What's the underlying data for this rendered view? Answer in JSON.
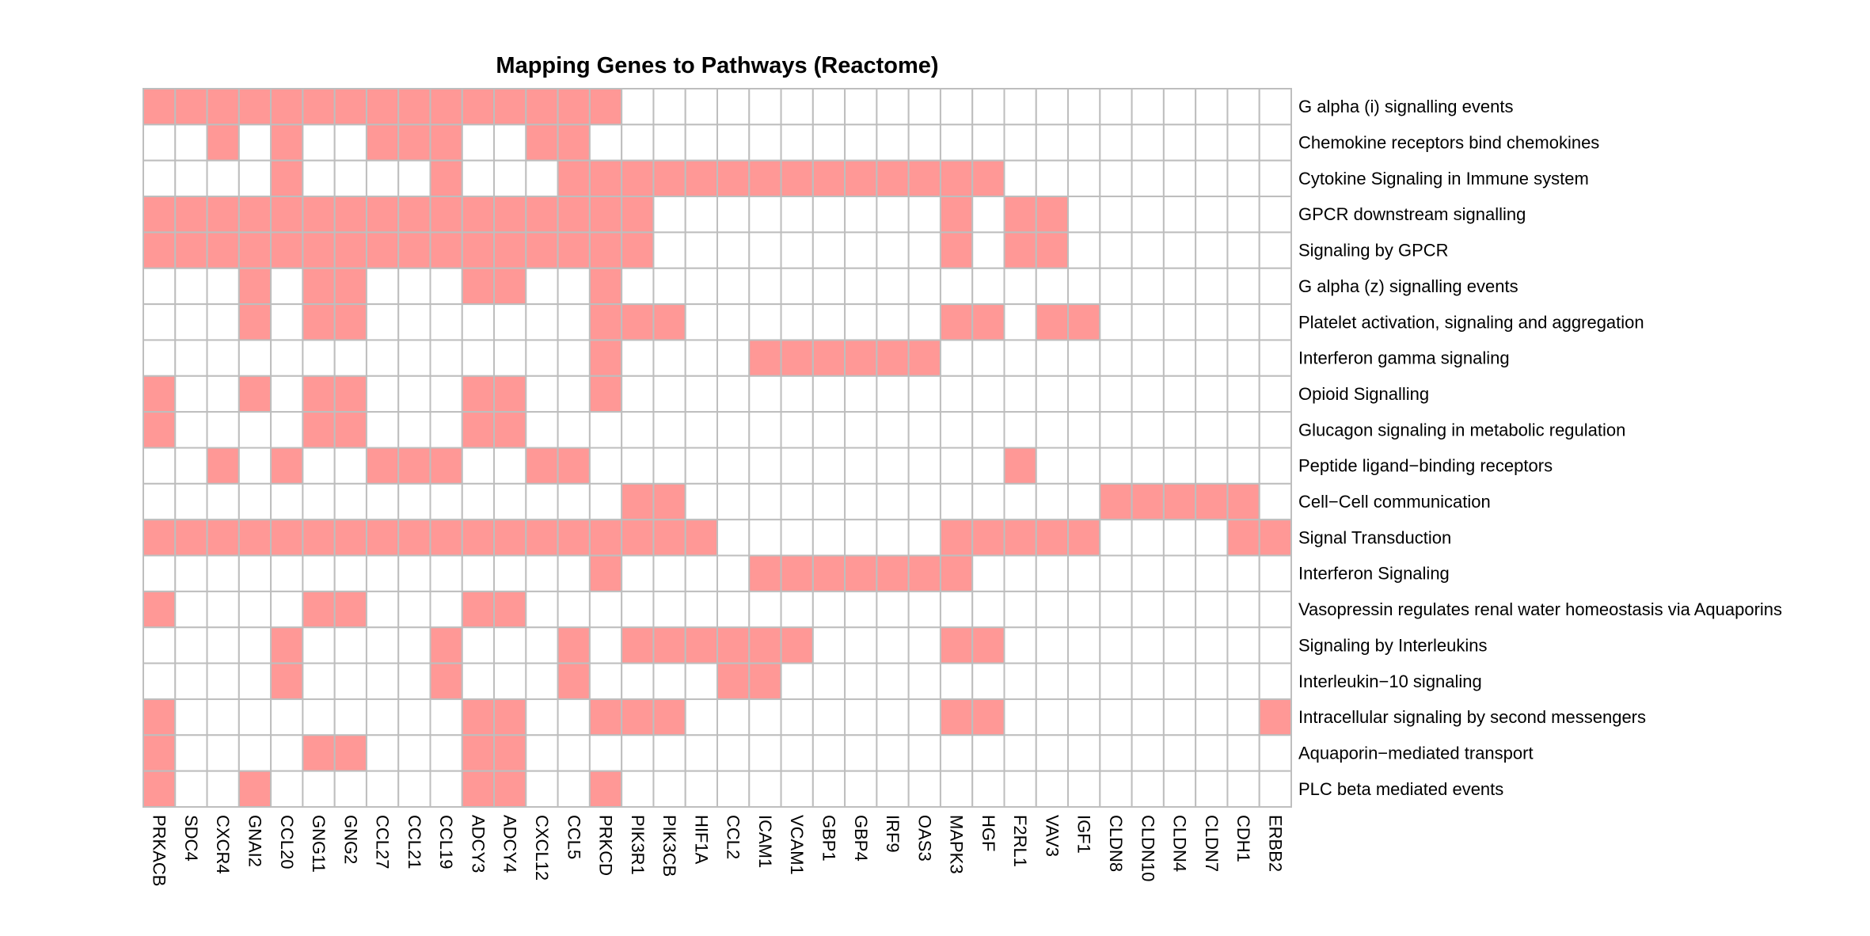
{
  "chart_data": {
    "type": "heatmap",
    "title": "Mapping Genes to Pathways (Reactome)",
    "columns": [
      "PRKACB",
      "SDC4",
      "CXCR4",
      "GNAI2",
      "CCL20",
      "GNG11",
      "GNG2",
      "CCL27",
      "CCL21",
      "CCL19",
      "ADCY3",
      "ADCY4",
      "CXCL12",
      "CCL5",
      "PRKCD",
      "PIK3R1",
      "PIK3CB",
      "HIF1A",
      "CCL2",
      "ICAM1",
      "VCAM1",
      "GBP1",
      "GBP4",
      "IRF9",
      "OAS3",
      "MAPK3",
      "HGF",
      "F2RL1",
      "VAV3",
      "IGF1",
      "CLDN8",
      "CLDN10",
      "CLDN4",
      "CLDN7",
      "CDH1",
      "ERBB2"
    ],
    "rows": [
      "G alpha (i) signalling events",
      "Chemokine receptors bind chemokines",
      "Cytokine Signaling in Immune system",
      "GPCR downstream signalling",
      "Signaling by GPCR",
      "G alpha (z) signalling events",
      "Platelet activation, signaling and aggregation",
      "Interferon gamma signaling",
      "Opioid Signalling",
      "Glucagon signaling in metabolic regulation",
      "Peptide ligand−binding receptors",
      "Cell−Cell communication",
      "Signal Transduction",
      "Interferon Signaling",
      "Vasopressin regulates renal water homeostasis via Aquaporins",
      "Signaling by Interleukins",
      "Interleukin−10 signaling",
      "Intracellular signaling by second messengers",
      "Aquaporin−mediated transport",
      "PLC beta mediated events"
    ],
    "matrix": [
      [
        1,
        1,
        1,
        1,
        1,
        1,
        1,
        1,
        1,
        1,
        1,
        1,
        1,
        1,
        1,
        0,
        0,
        0,
        0,
        0,
        0,
        0,
        0,
        0,
        0,
        0,
        0,
        0,
        0,
        0,
        0,
        0,
        0,
        0,
        0,
        0
      ],
      [
        0,
        0,
        1,
        0,
        1,
        0,
        0,
        1,
        1,
        1,
        0,
        0,
        1,
        1,
        0,
        0,
        0,
        0,
        0,
        0,
        0,
        0,
        0,
        0,
        0,
        0,
        0,
        0,
        0,
        0,
        0,
        0,
        0,
        0,
        0,
        0
      ],
      [
        0,
        0,
        0,
        0,
        1,
        0,
        0,
        0,
        0,
        1,
        0,
        0,
        0,
        1,
        1,
        1,
        1,
        1,
        1,
        1,
        1,
        1,
        1,
        1,
        1,
        1,
        1,
        0,
        0,
        0,
        0,
        0,
        0,
        0,
        0,
        0
      ],
      [
        1,
        1,
        1,
        1,
        1,
        1,
        1,
        1,
        1,
        1,
        1,
        1,
        1,
        1,
        1,
        1,
        0,
        0,
        0,
        0,
        0,
        0,
        0,
        0,
        0,
        1,
        0,
        1,
        1,
        0,
        0,
        0,
        0,
        0,
        0,
        0
      ],
      [
        1,
        1,
        1,
        1,
        1,
        1,
        1,
        1,
        1,
        1,
        1,
        1,
        1,
        1,
        1,
        1,
        0,
        0,
        0,
        0,
        0,
        0,
        0,
        0,
        0,
        1,
        0,
        1,
        1,
        0,
        0,
        0,
        0,
        0,
        0,
        0
      ],
      [
        0,
        0,
        0,
        1,
        0,
        1,
        1,
        0,
        0,
        0,
        1,
        1,
        0,
        0,
        1,
        0,
        0,
        0,
        0,
        0,
        0,
        0,
        0,
        0,
        0,
        0,
        0,
        0,
        0,
        0,
        0,
        0,
        0,
        0,
        0,
        0
      ],
      [
        0,
        0,
        0,
        1,
        0,
        1,
        1,
        0,
        0,
        0,
        0,
        0,
        0,
        0,
        1,
        1,
        1,
        0,
        0,
        0,
        0,
        0,
        0,
        0,
        0,
        1,
        1,
        0,
        1,
        1,
        0,
        0,
        0,
        0,
        0,
        0
      ],
      [
        0,
        0,
        0,
        0,
        0,
        0,
        0,
        0,
        0,
        0,
        0,
        0,
        0,
        0,
        1,
        0,
        0,
        0,
        0,
        1,
        1,
        1,
        1,
        1,
        1,
        0,
        0,
        0,
        0,
        0,
        0,
        0,
        0,
        0,
        0,
        0
      ],
      [
        1,
        0,
        0,
        1,
        0,
        1,
        1,
        0,
        0,
        0,
        1,
        1,
        0,
        0,
        1,
        0,
        0,
        0,
        0,
        0,
        0,
        0,
        0,
        0,
        0,
        0,
        0,
        0,
        0,
        0,
        0,
        0,
        0,
        0,
        0,
        0
      ],
      [
        1,
        0,
        0,
        0,
        0,
        1,
        1,
        0,
        0,
        0,
        1,
        1,
        0,
        0,
        0,
        0,
        0,
        0,
        0,
        0,
        0,
        0,
        0,
        0,
        0,
        0,
        0,
        0,
        0,
        0,
        0,
        0,
        0,
        0,
        0,
        0
      ],
      [
        0,
        0,
        1,
        0,
        1,
        0,
        0,
        1,
        1,
        1,
        0,
        0,
        1,
        1,
        0,
        0,
        0,
        0,
        0,
        0,
        0,
        0,
        0,
        0,
        0,
        0,
        0,
        1,
        0,
        0,
        0,
        0,
        0,
        0,
        0,
        0
      ],
      [
        0,
        0,
        0,
        0,
        0,
        0,
        0,
        0,
        0,
        0,
        0,
        0,
        0,
        0,
        0,
        1,
        1,
        0,
        0,
        0,
        0,
        0,
        0,
        0,
        0,
        0,
        0,
        0,
        0,
        0,
        1,
        1,
        1,
        1,
        1,
        0
      ],
      [
        1,
        1,
        1,
        1,
        1,
        1,
        1,
        1,
        1,
        1,
        1,
        1,
        1,
        1,
        1,
        1,
        1,
        1,
        0,
        0,
        0,
        0,
        0,
        0,
        0,
        1,
        1,
        1,
        1,
        1,
        0,
        0,
        0,
        0,
        1,
        1
      ],
      [
        0,
        0,
        0,
        0,
        0,
        0,
        0,
        0,
        0,
        0,
        0,
        0,
        0,
        0,
        1,
        0,
        0,
        0,
        0,
        1,
        1,
        1,
        1,
        1,
        1,
        1,
        0,
        0,
        0,
        0,
        0,
        0,
        0,
        0,
        0,
        0
      ],
      [
        1,
        0,
        0,
        0,
        0,
        1,
        1,
        0,
        0,
        0,
        1,
        1,
        0,
        0,
        0,
        0,
        0,
        0,
        0,
        0,
        0,
        0,
        0,
        0,
        0,
        0,
        0,
        0,
        0,
        0,
        0,
        0,
        0,
        0,
        0,
        0
      ],
      [
        0,
        0,
        0,
        0,
        1,
        0,
        0,
        0,
        0,
        1,
        0,
        0,
        0,
        1,
        0,
        1,
        1,
        1,
        1,
        1,
        1,
        0,
        0,
        0,
        0,
        1,
        1,
        0,
        0,
        0,
        0,
        0,
        0,
        0,
        0,
        0
      ],
      [
        0,
        0,
        0,
        0,
        1,
        0,
        0,
        0,
        0,
        1,
        0,
        0,
        0,
        1,
        0,
        0,
        0,
        0,
        1,
        1,
        0,
        0,
        0,
        0,
        0,
        0,
        0,
        0,
        0,
        0,
        0,
        0,
        0,
        0,
        0,
        0
      ],
      [
        1,
        0,
        0,
        0,
        0,
        0,
        0,
        0,
        0,
        0,
        1,
        1,
        0,
        0,
        1,
        1,
        1,
        0,
        0,
        0,
        0,
        0,
        0,
        0,
        0,
        1,
        1,
        0,
        0,
        0,
        0,
        0,
        0,
        0,
        0,
        1
      ],
      [
        1,
        0,
        0,
        0,
        0,
        1,
        1,
        0,
        0,
        0,
        1,
        1,
        0,
        0,
        0,
        0,
        0,
        0,
        0,
        0,
        0,
        0,
        0,
        0,
        0,
        0,
        0,
        0,
        0,
        0,
        0,
        0,
        0,
        0,
        0,
        0
      ],
      [
        1,
        0,
        0,
        1,
        0,
        0,
        0,
        0,
        0,
        0,
        1,
        1,
        0,
        0,
        1,
        0,
        0,
        0,
        0,
        0,
        0,
        0,
        0,
        0,
        0,
        0,
        0,
        0,
        0,
        0,
        0,
        0,
        0,
        0,
        0,
        0
      ]
    ],
    "colors": {
      "present": "#ff9896",
      "absent": "#ffffff",
      "grid": "#bebebe"
    }
  }
}
